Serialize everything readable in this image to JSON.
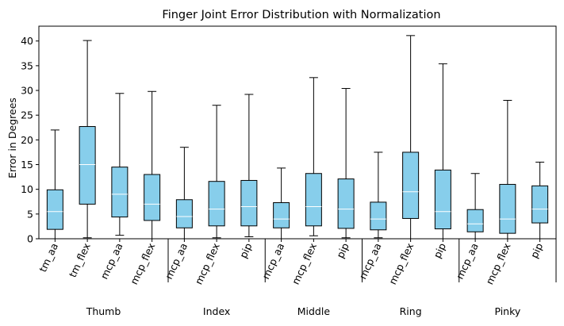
{
  "chart_data": {
    "type": "boxplot",
    "title": "Finger Joint Error Distribution with Normalization",
    "xlabel": "",
    "ylabel": "Error in Degrees",
    "ylim": [
      0,
      43
    ],
    "yticks": [
      0,
      5,
      10,
      15,
      20,
      25,
      30,
      35,
      40
    ],
    "grid": false,
    "box_color": "#87CEEB",
    "median_color": "#ffffff",
    "categories": [
      "tm_aa",
      "tm_flex",
      "mcp_aa",
      "mcp_flex",
      "mcp_aa",
      "mcp_flex",
      "pip",
      "mcp_aa",
      "mcp_flex",
      "pip",
      "mcp_aa",
      "mcp_flex",
      "pip",
      "mcp_aa",
      "mcp_flex",
      "pip"
    ],
    "groups": [
      {
        "name": "Thumb",
        "count": 4
      },
      {
        "name": "Index",
        "count": 3
      },
      {
        "name": "Middle",
        "count": 3
      },
      {
        "name": "Ring",
        "count": 3
      },
      {
        "name": "Pinky",
        "count": 3
      }
    ],
    "boxes": [
      {
        "whisker_low": 0.0,
        "q1": 1.9,
        "median": 5.5,
        "q3": 9.9,
        "whisker_high": 22.0
      },
      {
        "whisker_low": 0.2,
        "q1": 7.0,
        "median": 15.0,
        "q3": 22.7,
        "whisker_high": 40.1
      },
      {
        "whisker_low": 0.7,
        "q1": 4.4,
        "median": 9.0,
        "q3": 14.5,
        "whisker_high": 29.4
      },
      {
        "whisker_low": 0.0,
        "q1": 3.7,
        "median": 7.0,
        "q3": 13.0,
        "whisker_high": 29.8
      },
      {
        "whisker_low": 0.0,
        "q1": 2.2,
        "median": 4.5,
        "q3": 7.9,
        "whisker_high": 18.5
      },
      {
        "whisker_low": 0.2,
        "q1": 2.6,
        "median": 6.0,
        "q3": 11.6,
        "whisker_high": 27.0
      },
      {
        "whisker_low": 0.4,
        "q1": 2.6,
        "median": 6.5,
        "q3": 11.8,
        "whisker_high": 29.2
      },
      {
        "whisker_low": 0.0,
        "q1": 2.2,
        "median": 4.0,
        "q3": 7.3,
        "whisker_high": 14.3
      },
      {
        "whisker_low": 0.6,
        "q1": 2.6,
        "median": 6.5,
        "q3": 13.2,
        "whisker_high": 32.6
      },
      {
        "whisker_low": 0.2,
        "q1": 2.1,
        "median": 6.0,
        "q3": 12.1,
        "whisker_high": 30.4
      },
      {
        "whisker_low": 0.2,
        "q1": 1.8,
        "median": 4.0,
        "q3": 7.4,
        "whisker_high": 17.5
      },
      {
        "whisker_low": 0.0,
        "q1": 4.1,
        "median": 9.5,
        "q3": 17.5,
        "whisker_high": 41.1
      },
      {
        "whisker_low": 0.0,
        "q1": 2.0,
        "median": 5.5,
        "q3": 13.9,
        "whisker_high": 35.4
      },
      {
        "whisker_low": 0.0,
        "q1": 1.4,
        "median": 3.0,
        "q3": 5.9,
        "whisker_high": 13.2
      },
      {
        "whisker_low": 0.0,
        "q1": 1.1,
        "median": 4.0,
        "q3": 11.0,
        "whisker_high": 28.0
      },
      {
        "whisker_low": 0.0,
        "q1": 3.2,
        "median": 6.0,
        "q3": 10.7,
        "whisker_high": 15.5
      }
    ]
  }
}
